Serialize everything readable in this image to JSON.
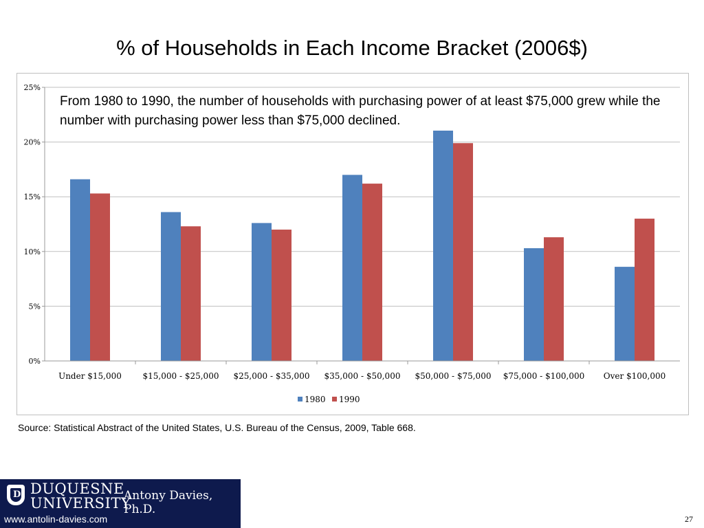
{
  "slide": {
    "title": "% of Households in Each Income Bracket (2006$)",
    "source": "Source: Statistical Abstract of the United States, U.S. Bureau of the Census, 2009, Table 668.",
    "page_number": "27"
  },
  "annotation": {
    "text": "From 1980 to 1990, the number of households with purchasing power of at least $75,000 grew while the number with purchasing power less than $75,000 declined."
  },
  "logo": {
    "seal_letter": "D",
    "university_line1": "DUQUESNE",
    "university_line2": "UNIVERSITY",
    "author": "Antony Davies, Ph.D.",
    "website": "www.antolin-davies.com"
  },
  "chart_data": {
    "type": "bar",
    "title": "",
    "xlabel": "",
    "ylabel": "",
    "categories": [
      "Under $15,000",
      "$15,000 - $25,000",
      "$25,000 - $35,000",
      "$35,000 - $50,000",
      "$50,000 - $75,000",
      "$75,000 - $100,000",
      "Over $100,000"
    ],
    "series": [
      {
        "name": "1980",
        "color": "#4f81bd",
        "values": [
          16.6,
          13.6,
          12.6,
          17.0,
          21.2,
          10.3,
          8.6
        ]
      },
      {
        "name": "1990",
        "color": "#c0504d",
        "values": [
          15.3,
          12.3,
          12.0,
          16.2,
          19.9,
          11.3,
          13.0
        ]
      }
    ],
    "ylim": [
      0,
      25
    ],
    "yticks": [
      0,
      5,
      10,
      15,
      20,
      25
    ],
    "ytick_labels": [
      "0%",
      "5%",
      "10%",
      "15%",
      "20%",
      "25%"
    ],
    "grid": true,
    "legend_position": "bottom"
  }
}
